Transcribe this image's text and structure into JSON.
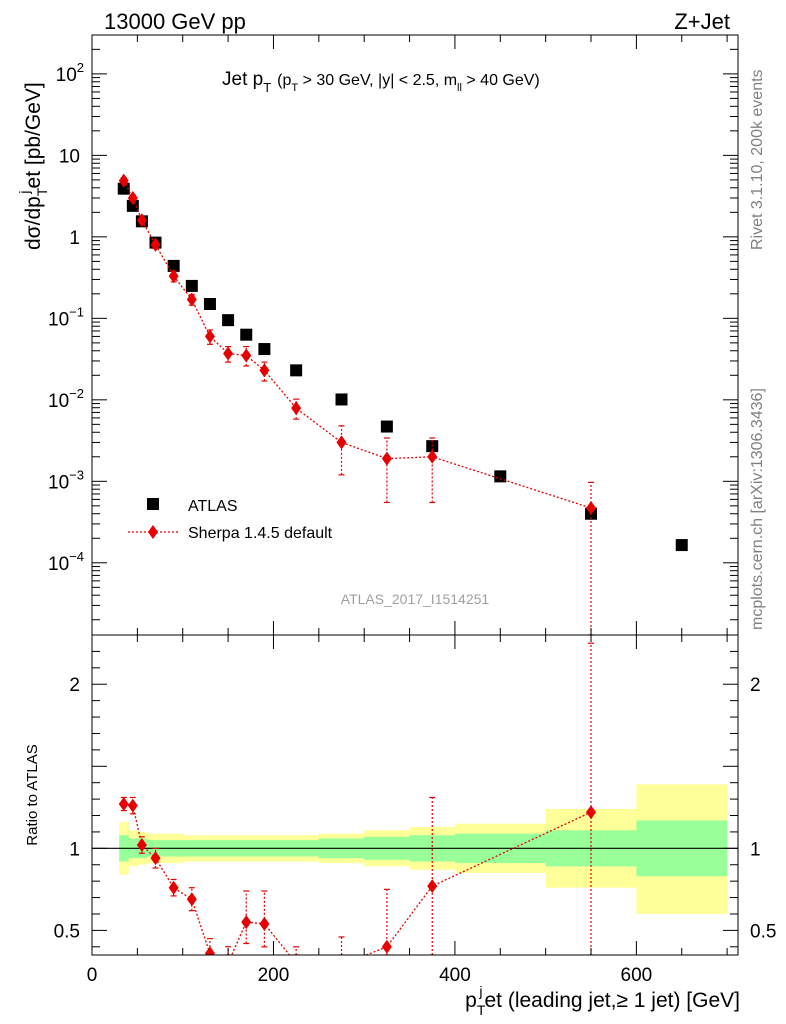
{
  "header": {
    "left_title": "13000 GeV pp",
    "right_title": "Z+Jet",
    "rivet_label": "Rivet 3.1.10,  200k events",
    "mcplots_label": "mcplots.cern.ch [arXiv:1306.3436]",
    "analysis_id": "ATLAS_2017_I1514251"
  },
  "colors": {
    "data": "#000000",
    "mc": "#e60000",
    "band_inner": "#99ff99",
    "band_outer": "#ffff99"
  },
  "chart_data": [
    {
      "type": "scatter",
      "panel": "main",
      "title_main": "Jet p",
      "title_sub": "T",
      "title_cuts_p": "(p",
      "title_cuts_t": "T",
      "title_cuts_rest": " > 30 GeV, |y| < 2.5, m",
      "title_cuts_ll": "ll",
      "title_cuts_end": " > 40 GeV)",
      "ylabel": "dσ/dp",
      "ylabel_sub": "T",
      "ylabel_sup": "j",
      "ylabel_rest": "et [pb/GeV]",
      "yscale": "log",
      "ylim": [
        1.3e-05,
        300
      ],
      "xlim": [
        0,
        712
      ],
      "y_ticks": [
        {
          "value": 100,
          "base": "10",
          "exp": "2"
        },
        {
          "value": 10,
          "base": "10",
          "exp": ""
        },
        {
          "value": 1,
          "base": "1",
          "exp": ""
        },
        {
          "value": 0.1,
          "base": "10",
          "exp": "−1"
        },
        {
          "value": 0.01,
          "base": "10",
          "exp": "−2"
        },
        {
          "value": 0.001,
          "base": "10",
          "exp": "−3"
        },
        {
          "value": 0.0001,
          "base": "10",
          "exp": "−4"
        }
      ],
      "legend_position": "bottom-left",
      "series": [
        {
          "name": "ATLAS",
          "marker": "square",
          "x": [
            35,
            45,
            55,
            70,
            90,
            110,
            130,
            150,
            170,
            190,
            225,
            275,
            325,
            375,
            450,
            550,
            650
          ],
          "y": [
            3.9,
            2.4,
            1.55,
            0.85,
            0.44,
            0.25,
            0.15,
            0.095,
            0.063,
            0.042,
            0.023,
            0.0101,
            0.0047,
            0.0027,
            0.00115,
            0.0004,
            0.000165
          ]
        },
        {
          "name": "Sherpa 1.4.5 default",
          "marker": "diamond",
          "x": [
            35,
            45,
            55,
            70,
            90,
            110,
            130,
            150,
            170,
            190,
            225,
            275,
            325,
            375,
            550
          ],
          "y": [
            4.9,
            3.0,
            1.6,
            0.8,
            0.33,
            0.17,
            0.06,
            0.037,
            0.035,
            0.023,
            0.0079,
            0.003,
            0.0019,
            0.002,
            0.00047
          ],
          "err_lo": [
            4.5,
            2.75,
            1.48,
            0.72,
            0.28,
            0.145,
            0.048,
            0.029,
            0.026,
            0.017,
            0.0058,
            0.0012,
            0.00055,
            0.00055,
            1.3e-05
          ],
          "err_hi": [
            5.3,
            3.25,
            1.72,
            0.88,
            0.38,
            0.195,
            0.072,
            0.045,
            0.045,
            0.029,
            0.0102,
            0.0048,
            0.0034,
            0.0034,
            0.00097
          ]
        }
      ]
    },
    {
      "type": "scatter",
      "panel": "ratio",
      "ylabel": "Ratio to ATLAS",
      "xlabel_p": "p",
      "xlabel_t": "T",
      "xlabel_j": "j",
      "xlabel_rest": "et (leading jet,≥ 1 jet) [GeV]",
      "ylim": [
        0.35,
        2.3
      ],
      "xlim": [
        0,
        712
      ],
      "y_ticks": [
        {
          "value": 0.5,
          "label": "0.5"
        },
        {
          "value": 1,
          "label": "1"
        },
        {
          "value": 2,
          "label": "2"
        }
      ],
      "x_ticks": [
        {
          "value": 0,
          "label": "0"
        },
        {
          "value": 200,
          "label": "200"
        },
        {
          "value": 400,
          "label": "400"
        },
        {
          "value": 600,
          "label": "600"
        }
      ],
      "bands": {
        "edges": [
          30,
          40,
          50,
          60,
          80,
          100,
          120,
          140,
          160,
          180,
          200,
          250,
          300,
          350,
          400,
          500,
          600,
          700
        ],
        "inner_lo": [
          0.92,
          0.94,
          0.94,
          0.95,
          0.95,
          0.95,
          0.95,
          0.95,
          0.95,
          0.95,
          0.95,
          0.94,
          0.93,
          0.92,
          0.91,
          0.89,
          0.83
        ],
        "inner_hi": [
          1.08,
          1.06,
          1.06,
          1.05,
          1.05,
          1.05,
          1.05,
          1.05,
          1.05,
          1.05,
          1.05,
          1.06,
          1.07,
          1.08,
          1.09,
          1.11,
          1.17
        ],
        "outer_lo": [
          0.84,
          0.89,
          0.9,
          0.91,
          0.91,
          0.92,
          0.92,
          0.92,
          0.92,
          0.92,
          0.92,
          0.91,
          0.89,
          0.87,
          0.85,
          0.76,
          0.6
        ],
        "outer_hi": [
          1.16,
          1.11,
          1.1,
          1.09,
          1.09,
          1.08,
          1.08,
          1.08,
          1.08,
          1.08,
          1.08,
          1.09,
          1.11,
          1.13,
          1.15,
          1.24,
          1.39
        ]
      },
      "series": [
        {
          "name": "Sherpa 1.4.5 default",
          "x": [
            35,
            45,
            55,
            70,
            90,
            110,
            130,
            150,
            170,
            190,
            225,
            275,
            325,
            375,
            550
          ],
          "y": [
            1.27,
            1.26,
            1.02,
            0.94,
            0.76,
            0.69,
            0.36,
            0.3,
            0.55,
            0.54,
            0.3,
            0.29,
            0.4,
            0.77,
            1.22
          ],
          "err_lo": [
            1.23,
            1.21,
            0.97,
            0.88,
            0.71,
            0.62,
            0.3,
            0.22,
            0.42,
            0.4,
            0.2,
            0.15,
            0.15,
            0.15,
            0.15
          ],
          "err_hi": [
            1.31,
            1.31,
            1.07,
            1.0,
            0.81,
            0.76,
            0.45,
            0.4,
            0.74,
            0.74,
            0.4,
            0.46,
            0.75,
            1.31,
            2.25
          ]
        }
      ]
    }
  ]
}
